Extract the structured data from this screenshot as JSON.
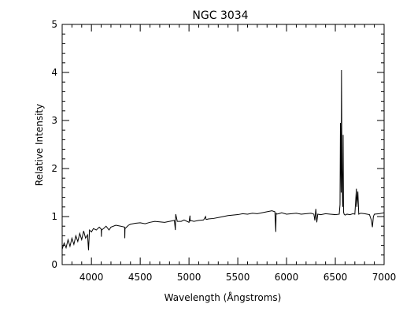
{
  "chart_data": {
    "type": "line",
    "title": "NGC 3034",
    "xlabel": "Wavelength (Ångstroms)",
    "ylabel": "Relative Intensity",
    "xlim": [
      3700,
      7000
    ],
    "ylim": [
      0,
      5
    ],
    "x_ticks": [
      4000,
      4500,
      5000,
      5500,
      6000,
      6500,
      7000
    ],
    "y_ticks": [
      0,
      1,
      2,
      3,
      4,
      5
    ],
    "grid": false,
    "line_color": "#000000",
    "series": [
      {
        "x": [
          3700,
          3720,
          3740,
          3760,
          3780,
          3800,
          3820,
          3840,
          3860,
          3880,
          3900,
          3920,
          3940,
          3960,
          3970,
          3980,
          4000,
          4020,
          4050,
          4080,
          4100,
          4102,
          4104,
          4130,
          4150,
          4180,
          4200,
          4250,
          4300,
          4340,
          4342,
          4344,
          4380,
          4400,
          4450,
          4500,
          4550,
          4600,
          4650,
          4700,
          4750,
          4800,
          4850,
          4860,
          4862,
          4864,
          4880,
          4920,
          4950,
          5000,
          5010,
          5012,
          5014,
          5050,
          5100,
          5150,
          5170,
          5175,
          5180,
          5200,
          5250,
          5300,
          5350,
          5400,
          5450,
          5500,
          5550,
          5600,
          5650,
          5700,
          5750,
          5800,
          5850,
          5880,
          5890,
          5893,
          5896,
          5920,
          5950,
          6000,
          6050,
          6100,
          6150,
          6200,
          6250,
          6280,
          6290,
          6300,
          6310,
          6320,
          6350,
          6400,
          6450,
          6500,
          6540,
          6548,
          6552,
          6560,
          6563,
          6568,
          6575,
          6580,
          6584,
          6590,
          6600,
          6620,
          6650,
          6680,
          6700,
          6716,
          6720,
          6731,
          6740,
          6760,
          6800,
          6850,
          6870,
          6880,
          6890,
          6900,
          6950,
          7000
        ],
        "y": [
          0.32,
          0.45,
          0.35,
          0.52,
          0.38,
          0.55,
          0.42,
          0.6,
          0.48,
          0.65,
          0.52,
          0.7,
          0.55,
          0.62,
          0.3,
          0.72,
          0.68,
          0.75,
          0.72,
          0.78,
          0.74,
          0.58,
          0.72,
          0.76,
          0.8,
          0.72,
          0.78,
          0.82,
          0.8,
          0.78,
          0.55,
          0.75,
          0.82,
          0.84,
          0.86,
          0.87,
          0.85,
          0.88,
          0.9,
          0.89,
          0.88,
          0.9,
          0.92,
          0.72,
          0.9,
          1.05,
          0.9,
          0.9,
          0.93,
          0.88,
          1.02,
          0.9,
          0.92,
          0.9,
          0.92,
          0.93,
          1.0,
          0.94,
          0.94,
          0.95,
          0.96,
          0.98,
          1.0,
          1.02,
          1.03,
          1.04,
          1.06,
          1.05,
          1.07,
          1.06,
          1.08,
          1.1,
          1.12,
          1.1,
          0.68,
          1.08,
          1.05,
          1.06,
          1.08,
          1.05,
          1.06,
          1.07,
          1.05,
          1.06,
          1.07,
          1.05,
          0.92,
          1.16,
          0.88,
          1.05,
          1.04,
          1.06,
          1.05,
          1.04,
          1.05,
          1.25,
          2.95,
          1.5,
          4.05,
          2.0,
          1.2,
          2.7,
          1.1,
          1.05,
          1.03,
          1.05,
          1.04,
          1.06,
          1.05,
          1.58,
          1.2,
          1.52,
          1.05,
          1.07,
          1.06,
          1.04,
          0.92,
          0.78,
          1.0,
          1.05,
          1.06,
          1.08
        ]
      }
    ]
  }
}
